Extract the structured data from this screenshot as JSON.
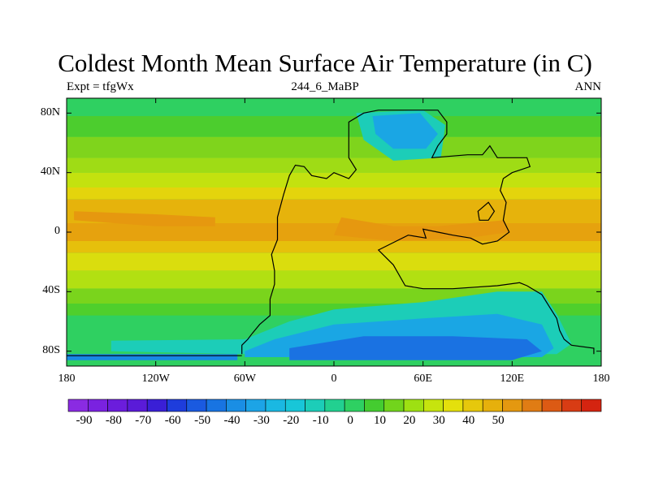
{
  "title": "Coldest Month Mean Surface Air Temperature (in C)",
  "subtitle_left": "Expt = tfgWx",
  "subtitle_center": "244_6_MaBP",
  "subtitle_right": "ANN",
  "latitude_labels": [
    "80N",
    "40N",
    "0",
    "40S",
    "80S"
  ],
  "longitude_labels": [
    "180",
    "120W",
    "60W",
    "0",
    "60E",
    "120E",
    "180"
  ],
  "colorbar": {
    "labels": [
      "-90",
      "-80",
      "-70",
      "-60",
      "-50",
      "-40",
      "-30",
      "-20",
      "-10",
      "0",
      "10",
      "20",
      "30",
      "40",
      "50"
    ],
    "colors": [
      "#8a2be2",
      "#7a22e0",
      "#6b1ddc",
      "#5a1bd8",
      "#3a1fd6",
      "#1e3ddc",
      "#1a5ae0",
      "#1874e2",
      "#1a8ee4",
      "#1ca4e6",
      "#1ab8e2",
      "#18c6d8",
      "#1ccdb8",
      "#22d090",
      "#2ed062",
      "#44cc30",
      "#72d41c",
      "#9ee012",
      "#c6e40e",
      "#e4e00c",
      "#e6c80c",
      "#e6b00c",
      "#e49810",
      "#e07c14",
      "#dc5a14",
      "#d83c14",
      "#d42410"
    ]
  },
  "map_layers": {
    "background": "#2fd061",
    "bands": [
      {
        "color": "#4ccd2e",
        "lat": [
          64,
          78
        ]
      },
      {
        "color": "#7fd41c",
        "lat": [
          50,
          64
        ]
      },
      {
        "color": "#9fdc15",
        "lat": [
          40,
          50
        ]
      },
      {
        "color": "#c3e20f",
        "lat": [
          30,
          40
        ]
      },
      {
        "color": "#e4d40c",
        "lat": [
          22,
          30
        ]
      },
      {
        "color": "#e6b30c",
        "lat": [
          6,
          22
        ]
      },
      {
        "color": "#e6a20e",
        "lat": [
          -6,
          6
        ]
      },
      {
        "color": "#e6c00c",
        "lat": [
          -14,
          -6
        ]
      },
      {
        "color": "#dadd0e",
        "lat": [
          -26,
          -14
        ]
      },
      {
        "color": "#b2e012",
        "lat": [
          -38,
          -26
        ]
      },
      {
        "color": "#7ad41c",
        "lat": [
          -48,
          -38
        ]
      },
      {
        "color": "#4fcf2c",
        "lat": [
          -56,
          -48
        ]
      }
    ],
    "cold_regions": [
      {
        "color": "#1ccdb8",
        "points": [
          [
            -150,
            -73
          ],
          [
            -60,
            -72
          ],
          [
            -30,
            -60
          ],
          [
            0,
            -52
          ],
          [
            60,
            -47
          ],
          [
            110,
            -40
          ],
          [
            140,
            -40
          ],
          [
            150,
            -55
          ],
          [
            160,
            -75
          ],
          [
            150,
            -82
          ],
          [
            -60,
            -82
          ],
          [
            -150,
            -80
          ]
        ]
      },
      {
        "color": "#1aa6e4",
        "points": [
          [
            -60,
            -80
          ],
          [
            -40,
            -72
          ],
          [
            0,
            -62
          ],
          [
            60,
            -58
          ],
          [
            110,
            -55
          ],
          [
            140,
            -62
          ],
          [
            148,
            -78
          ],
          [
            140,
            -84
          ],
          [
            -60,
            -84
          ]
        ]
      },
      {
        "color": "#1a72e2",
        "points": [
          [
            -30,
            -78
          ],
          [
            20,
            -70
          ],
          [
            80,
            -70
          ],
          [
            130,
            -72
          ],
          [
            140,
            -80
          ],
          [
            120,
            -86
          ],
          [
            -30,
            -86
          ]
        ]
      },
      {
        "color": "#1888e6",
        "points": [
          [
            -180,
            -82
          ],
          [
            -65,
            -82
          ],
          [
            -65,
            -86
          ],
          [
            -180,
            -86
          ]
        ]
      },
      {
        "color": "#1ccdb8",
        "points": [
          [
            15,
            80
          ],
          [
            60,
            82
          ],
          [
            75,
            72
          ],
          [
            72,
            50
          ],
          [
            40,
            48
          ],
          [
            20,
            62
          ]
        ]
      },
      {
        "color": "#1aa6e4",
        "points": [
          [
            26,
            78
          ],
          [
            58,
            80
          ],
          [
            70,
            66
          ],
          [
            62,
            56
          ],
          [
            40,
            56
          ],
          [
            28,
            66
          ]
        ]
      },
      {
        "color": "#e6980f",
        "points": [
          [
            5,
            10
          ],
          [
            40,
            4
          ],
          [
            70,
            4
          ],
          [
            115,
            8
          ],
          [
            118,
            0
          ],
          [
            90,
            -4
          ],
          [
            40,
            -6
          ],
          [
            0,
            -2
          ]
        ]
      },
      {
        "color": "#e6980f",
        "points": [
          [
            -175,
            14
          ],
          [
            -120,
            12
          ],
          [
            -80,
            10
          ],
          [
            -80,
            4
          ],
          [
            -120,
            4
          ],
          [
            -175,
            8
          ]
        ]
      }
    ],
    "coastline": [
      [
        -62,
        -82
      ],
      [
        -62,
        -76
      ],
      [
        -58,
        -72
      ],
      [
        -55,
        -68
      ],
      [
        -50,
        -62
      ],
      [
        -43,
        -56
      ],
      [
        -43,
        -45
      ],
      [
        -40,
        -35
      ],
      [
        -40,
        -26
      ],
      [
        -42,
        -15
      ],
      [
        -38,
        -5
      ],
      [
        -38,
        10
      ],
      [
        -34,
        25
      ],
      [
        -30,
        38
      ],
      [
        -26,
        45
      ],
      [
        -20,
        44
      ],
      [
        -15,
        38
      ],
      [
        -5,
        36
      ],
      [
        0,
        40
      ],
      [
        10,
        36
      ],
      [
        15,
        42
      ],
      [
        10,
        50
      ],
      [
        10,
        62
      ],
      [
        10,
        74
      ],
      [
        20,
        80
      ],
      [
        30,
        82
      ],
      [
        70,
        82
      ],
      [
        76,
        74
      ],
      [
        76,
        66
      ],
      [
        70,
        58
      ],
      [
        66,
        50
      ],
      [
        90,
        52
      ],
      [
        100,
        52
      ],
      [
        105,
        58
      ],
      [
        110,
        50
      ],
      [
        130,
        50
      ],
      [
        132,
        44
      ],
      [
        120,
        40
      ],
      [
        114,
        36
      ],
      [
        112,
        28
      ],
      [
        116,
        20
      ],
      [
        114,
        8
      ],
      [
        118,
        0
      ],
      [
        110,
        -6
      ],
      [
        100,
        -8
      ],
      [
        92,
        -4
      ],
      [
        80,
        -2
      ],
      [
        70,
        0
      ],
      [
        60,
        2
      ],
      [
        62,
        -4
      ],
      [
        50,
        -2
      ],
      [
        42,
        -6
      ],
      [
        30,
        -12
      ],
      [
        40,
        -22
      ],
      [
        48,
        -36
      ],
      [
        60,
        -38
      ],
      [
        80,
        -38
      ],
      [
        110,
        -36
      ],
      [
        125,
        -34
      ],
      [
        130,
        -36
      ],
      [
        140,
        -42
      ],
      [
        145,
        -50
      ],
      [
        150,
        -58
      ],
      [
        152,
        -66
      ],
      [
        155,
        -72
      ],
      [
        160,
        -76
      ],
      [
        175,
        -78
      ],
      [
        175,
        -82
      ]
    ],
    "coastline_bottom": [
      [
        -180,
        -83
      ],
      [
        -62,
        -83
      ]
    ],
    "island": [
      [
        97,
        14
      ],
      [
        104,
        20
      ],
      [
        108,
        14
      ],
      [
        104,
        8
      ],
      [
        98,
        8
      ]
    ]
  }
}
